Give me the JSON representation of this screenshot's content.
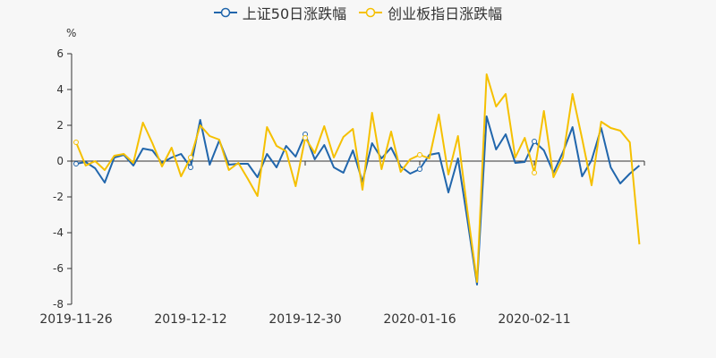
{
  "chart_data": {
    "type": "line",
    "title": "",
    "xlabel": "",
    "ylabel": "%",
    "ylim": [
      -8,
      6
    ],
    "yticks": [
      6,
      4,
      2,
      0,
      -2,
      -4,
      -6,
      -8
    ],
    "grid": false,
    "legend_position": "top",
    "x_tick_labels": [
      "2019-11-26",
      "2019-12-12",
      "2019-12-30",
      "2020-01-16",
      "2020-02-11"
    ],
    "x_tick_indices": [
      0,
      12,
      24,
      36,
      48
    ],
    "num_points": 60,
    "series": [
      {
        "name": "上证50日涨跌幅",
        "color": "#2166ac",
        "values": [
          -0.15,
          -0.05,
          -0.4,
          -1.2,
          0.2,
          0.35,
          -0.25,
          0.7,
          0.6,
          -0.1,
          0.2,
          0.4,
          -0.35,
          2.3,
          -0.2,
          1.15,
          -0.2,
          -0.15,
          -0.15,
          -0.9,
          0.4,
          -0.35,
          0.85,
          0.25,
          1.5,
          0.1,
          0.9,
          -0.35,
          -0.65,
          0.6,
          -1.15,
          1.0,
          0.15,
          0.75,
          -0.3,
          -0.7,
          -0.45,
          0.35,
          0.45,
          -1.75,
          0.15,
          -3.3,
          -6.9,
          2.5,
          0.65,
          1.5,
          -0.1,
          -0.05,
          1.1,
          0.6,
          -0.65,
          0.5,
          1.9,
          -0.85,
          0.05,
          1.85,
          -0.35,
          -1.25,
          -0.7,
          -0.25
        ]
      },
      {
        "name": "创业板指日涨跌幅",
        "color": "#f5c000",
        "values": [
          1.05,
          -0.25,
          0.0,
          -0.5,
          0.3,
          0.4,
          -0.1,
          2.15,
          1.0,
          -0.3,
          0.75,
          -0.85,
          0.2,
          2.0,
          1.4,
          1.2,
          -0.5,
          -0.1,
          -1.0,
          -1.95,
          1.9,
          0.85,
          0.55,
          -1.4,
          1.3,
          0.45,
          1.95,
          0.2,
          1.35,
          1.8,
          -1.6,
          2.7,
          -0.45,
          1.65,
          -0.6,
          0.1,
          0.35,
          0.15,
          2.6,
          -0.75,
          1.4,
          -2.8,
          -6.75,
          4.85,
          3.05,
          3.75,
          0.2,
          1.3,
          -0.65,
          2.8,
          -0.9,
          0.2,
          3.75,
          1.25,
          -1.35,
          2.2,
          1.85,
          1.7,
          1.05,
          -4.65
        ]
      }
    ]
  },
  "legend": {
    "items": [
      {
        "label": "上证50日涨跌幅",
        "color": "#2166ac"
      },
      {
        "label": "创业板指日涨跌幅",
        "color": "#f5c000"
      }
    ]
  },
  "axis": {
    "y_unit": "%"
  }
}
